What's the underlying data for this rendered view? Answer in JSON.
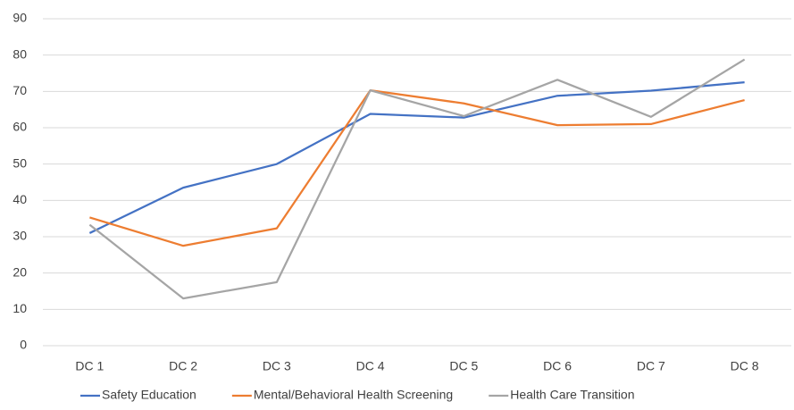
{
  "chart_data": {
    "type": "line",
    "categories": [
      "DC 1",
      "DC 2",
      "DC 3",
      "DC 4",
      "DC 5",
      "DC 6",
      "DC 7",
      "DC 8"
    ],
    "series": [
      {
        "name": "Safety Education",
        "color": "#4472c4",
        "values": [
          31,
          43.5,
          50,
          63.8,
          62.8,
          68.8,
          70.2,
          72.5
        ]
      },
      {
        "name": "Mental/Behavioral Health Screening",
        "color": "#ed7d31",
        "values": [
          35.3,
          27.5,
          32.3,
          70.3,
          66.7,
          60.7,
          61,
          67.6
        ]
      },
      {
        "name": "Health Care Transition",
        "color": "#a5a5a5",
        "values": [
          33.3,
          13,
          17.5,
          70.3,
          63.2,
          73.2,
          63,
          78.8
        ]
      }
    ],
    "ylim": [
      0,
      90
    ],
    "yticks": [
      0,
      10,
      20,
      30,
      40,
      50,
      60,
      70,
      80,
      90
    ],
    "grid": true,
    "legend": "bottom"
  }
}
